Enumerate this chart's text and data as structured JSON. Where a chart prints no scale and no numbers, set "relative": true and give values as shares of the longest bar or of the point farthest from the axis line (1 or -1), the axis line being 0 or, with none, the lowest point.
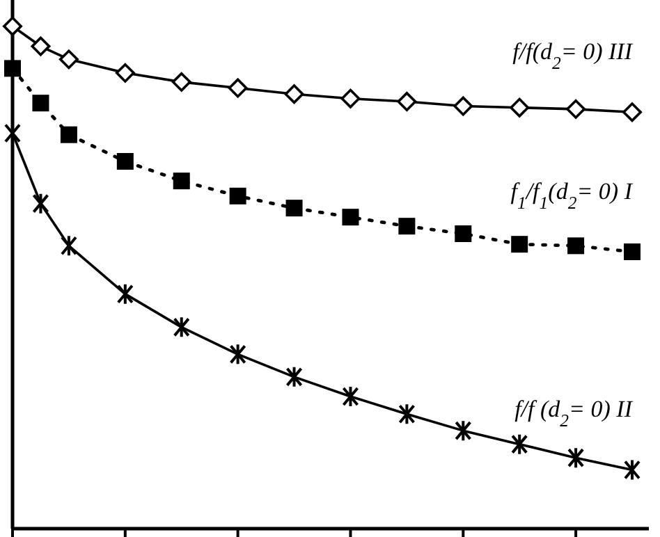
{
  "chart_data": {
    "type": "line",
    "relative": true,
    "categories": [
      null,
      null,
      null,
      null,
      null,
      null,
      null,
      null,
      null,
      null,
      null,
      null,
      null,
      null,
      null,
      null,
      null,
      null,
      null,
      null,
      null,
      null,
      null
    ],
    "series": [
      {
        "name": "f/f(d$_{2}$= 0) III",
        "color": "#000000",
        "marker": "diamond",
        "line_style": "solid",
        "values": [
          1,
          0.96,
          0.934,
          null,
          0.907,
          null,
          0.889,
          null,
          0.877,
          null,
          0.865,
          null,
          0.856,
          null,
          0.85,
          null,
          0.841,
          null,
          0.838,
          null,
          0.835,
          null,
          0.829
        ]
      },
      {
        "name": "f$_{1}$/f$_{1}$(d$_{2}$= 0) I",
        "color": "#000000",
        "marker": "square",
        "line_style": "dotted",
        "values": [
          0.916,
          0.847,
          0.784,
          null,
          0.731,
          null,
          0.692,
          null,
          0.662,
          null,
          0.638,
          null,
          0.62,
          null,
          0.602,
          null,
          0.587,
          null,
          0.566,
          null,
          0.563,
          null,
          0.551
        ]
      },
      {
        "name": "f/f (d$_{2}$= 0) II",
        "color": "#000000",
        "marker": "cross",
        "line_style": "solid",
        "values": [
          0.787,
          0.647,
          0.563,
          null,
          0.467,
          null,
          0.401,
          null,
          0.347,
          null,
          0.302,
          null,
          0.263,
          null,
          0.228,
          null,
          0.195,
          null,
          0.168,
          null,
          0.141,
          null,
          0.117
        ]
      }
    ]
  }
}
